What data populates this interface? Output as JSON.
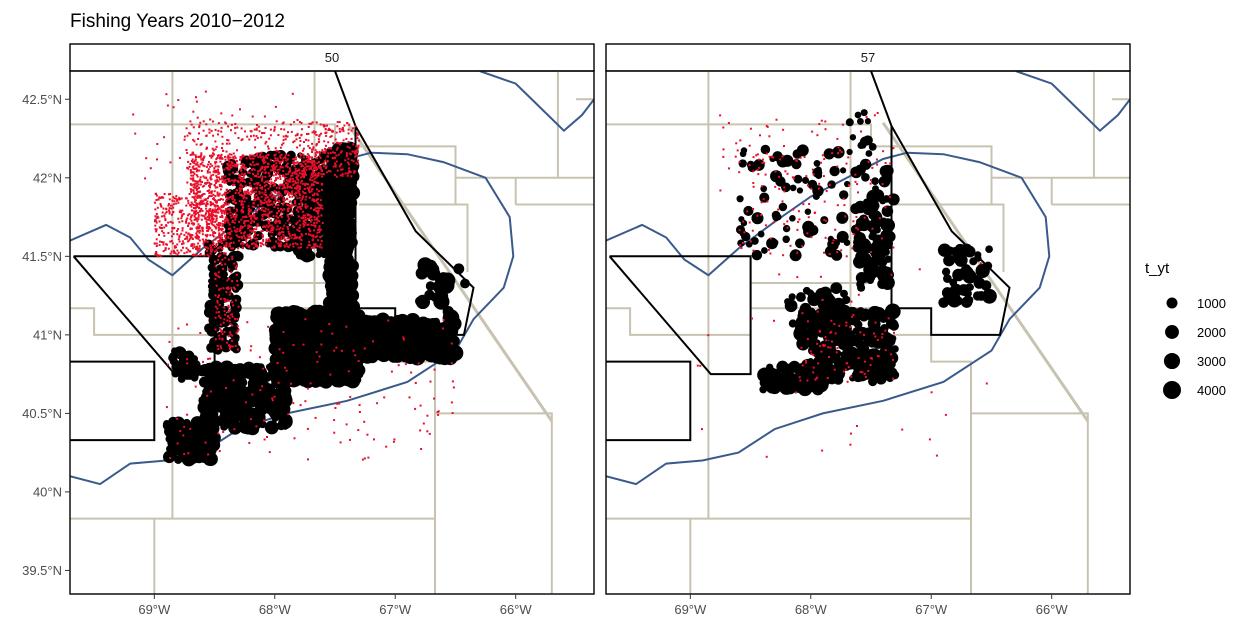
{
  "title": "Fishing Years 2010−2012",
  "panels": [
    {
      "label": "50"
    },
    {
      "label": "57"
    }
  ],
  "axes": {
    "xlim": [
      -69.7,
      -65.35
    ],
    "ylim": [
      39.35,
      42.68
    ],
    "x_ticks": [
      {
        "value": -69,
        "label": "69°W"
      },
      {
        "value": -68,
        "label": "68°W"
      },
      {
        "value": -67,
        "label": "67°W"
      },
      {
        "value": -66,
        "label": "66°W"
      }
    ],
    "y_ticks": [
      {
        "value": 39.5,
        "label": "39.5°N"
      },
      {
        "value": 40.0,
        "label": "40°N"
      },
      {
        "value": 40.5,
        "label": "40.5°N"
      },
      {
        "value": 41.0,
        "label": "41°N"
      },
      {
        "value": 41.5,
        "label": "41.5°N"
      },
      {
        "value": 42.0,
        "label": "42°N"
      },
      {
        "value": 42.5,
        "label": "42.5°N"
      }
    ]
  },
  "legend": {
    "title": "t_yt",
    "entries": [
      {
        "value": 1000,
        "label": "1000"
      },
      {
        "value": 2000,
        "label": "2000"
      },
      {
        "value": 3000,
        "label": "3000"
      },
      {
        "value": 4000,
        "label": "4000"
      }
    ]
  },
  "colors": {
    "stat_area_lines": "#c8c3b0",
    "closed_area": "#000000",
    "contour": "#3a5a8c",
    "haul_points": "#000000",
    "small_points": "#e8102a"
  },
  "chart_data": {
    "type": "scatter",
    "facets": [
      "50",
      "57"
    ],
    "size_variable": "t_yt",
    "stat_area_lines": [
      [
        [
          -69.7,
          42.34
        ],
        [
          -67.5,
          42.34
        ],
        [
          -67.5,
          42.2
        ],
        [
          -66.5,
          42.2
        ],
        [
          -66.5,
          42.0
        ],
        [
          -65.35,
          42.0
        ]
      ],
      [
        [
          -69.7,
          41.17
        ],
        [
          -69.5,
          41.17
        ],
        [
          -69.5,
          41.0
        ],
        [
          -68.5,
          41.0
        ]
      ],
      [
        [
          -68.5,
          41.17
        ],
        [
          -67.5,
          41.17
        ],
        [
          -67.5,
          41.0
        ],
        [
          -67.0,
          41.0
        ],
        [
          -67.0,
          40.83
        ],
        [
          -66.67,
          40.83
        ],
        [
          -66.67,
          40.5
        ],
        [
          -65.7,
          40.5
        ],
        [
          -65.7,
          39.35
        ]
      ],
      [
        [
          -68.85,
          42.68
        ],
        [
          -68.85,
          39.83
        ]
      ],
      [
        [
          -68.5,
          41.5
        ],
        [
          -68.5,
          41.17
        ]
      ],
      [
        [
          -68.5,
          41.33
        ],
        [
          -67.5,
          41.33
        ]
      ],
      [
        [
          -67.67,
          42.68
        ],
        [
          -67.67,
          41.17
        ]
      ],
      [
        [
          -69.7,
          39.83
        ],
        [
          -66.67,
          39.83
        ],
        [
          -66.67,
          39.35
        ]
      ],
      [
        [
          -69.0,
          39.83
        ],
        [
          -69.0,
          39.35
        ]
      ],
      [
        [
          -66.67,
          40.5
        ],
        [
          -66.67,
          39.83
        ]
      ],
      [
        [
          -67.3,
          41.83
        ],
        [
          -66.4,
          41.83
        ],
        [
          -66.4,
          41.4
        ]
      ],
      [
        [
          -66.5,
          42.0
        ],
        [
          -66.5,
          41.83
        ]
      ],
      [
        [
          -66.0,
          41.83
        ],
        [
          -66.0,
          42.0
        ]
      ],
      [
        [
          -65.35,
          41.83
        ],
        [
          -66.0,
          41.83
        ]
      ],
      [
        [
          -65.65,
          42.68
        ],
        [
          -65.65,
          42.0
        ]
      ],
      [
        [
          -65.5,
          42.5
        ],
        [
          -65.35,
          42.5
        ]
      ],
      [
        [
          -69.7,
          42.68
        ],
        [
          -67.85,
          42.68
        ]
      ]
    ],
    "closed_areas": [
      [
        [
          -69.67,
          41.5
        ],
        [
          -68.5,
          41.5
        ],
        [
          -68.5,
          40.75
        ],
        [
          -68.83,
          40.75
        ],
        [
          -69.67,
          41.5
        ]
      ],
      [
        [
          -67.5,
          42.68
        ],
        [
          -67.33,
          42.33
        ],
        [
          -67.33,
          41.17
        ],
        [
          -67.0,
          41.17
        ],
        [
          -67.0,
          41.0
        ],
        [
          -66.43,
          41.0
        ],
        [
          -66.35,
          41.3
        ],
        [
          -66.83,
          41.66
        ],
        [
          -67.33,
          42.33
        ]
      ],
      [
        [
          -69.7,
          40.83
        ],
        [
          -69.0,
          40.83
        ],
        [
          -69.0,
          40.33
        ],
        [
          -69.7,
          40.33
        ]
      ]
    ],
    "diagonal_line": [
      [
        -67.4,
        42.35
      ],
      [
        -65.7,
        40.45
      ]
    ],
    "contours": [
      [
        [
          -69.7,
          41.6
        ],
        [
          -69.4,
          41.7
        ],
        [
          -69.2,
          41.62
        ],
        [
          -69.05,
          41.48
        ],
        [
          -68.85,
          41.38
        ],
        [
          -68.6,
          41.55
        ],
        [
          -68.3,
          41.72
        ],
        [
          -68.0,
          41.88
        ],
        [
          -67.7,
          42.0
        ],
        [
          -67.4,
          42.12
        ],
        [
          -67.2,
          42.16
        ],
        [
          -66.9,
          42.15
        ],
        [
          -66.6,
          42.1
        ],
        [
          -66.25,
          42.0
        ],
        [
          -66.05,
          41.75
        ],
        [
          -66.02,
          41.5
        ],
        [
          -66.1,
          41.3
        ],
        [
          -66.35,
          41.1
        ],
        [
          -66.5,
          40.9
        ],
        [
          -66.9,
          40.7
        ],
        [
          -67.4,
          40.58
        ],
        [
          -67.9,
          40.5
        ],
        [
          -68.3,
          40.4
        ],
        [
          -68.6,
          40.25
        ],
        [
          -68.9,
          40.2
        ],
        [
          -69.2,
          40.18
        ],
        [
          -69.45,
          40.05
        ],
        [
          -69.7,
          40.1
        ]
      ],
      [
        [
          -66.3,
          42.68
        ],
        [
          -66.0,
          42.6
        ],
        [
          -65.8,
          42.45
        ],
        [
          -65.6,
          42.3
        ],
        [
          -65.45,
          42.4
        ],
        [
          -65.35,
          42.5
        ]
      ]
    ],
    "clusters": [
      {
        "facet": "50",
        "kind": "haul",
        "lon": [
          -68.0,
          -67.3
        ],
        "lat": [
          40.7,
          41.15
        ],
        "n": 1400,
        "t_yt": [
          50,
          2500
        ]
      },
      {
        "facet": "50",
        "kind": "haul",
        "lon": [
          -67.3,
          -66.5
        ],
        "lat": [
          40.85,
          41.1
        ],
        "n": 300,
        "t_yt": [
          100,
          3000
        ]
      },
      {
        "facet": "50",
        "kind": "haul",
        "lon": [
          -68.6,
          -67.9
        ],
        "lat": [
          40.4,
          40.8
        ],
        "n": 300,
        "t_yt": [
          100,
          2500
        ]
      },
      {
        "facet": "50",
        "kind": "haul",
        "lon": [
          -68.9,
          -68.5
        ],
        "lat": [
          40.2,
          40.45
        ],
        "n": 150,
        "t_yt": [
          200,
          2200
        ]
      },
      {
        "facet": "50",
        "kind": "haul",
        "lon": [
          -67.55,
          -67.35
        ],
        "lat": [
          41.15,
          42.2
        ],
        "n": 500,
        "t_yt": [
          100,
          2500
        ]
      },
      {
        "facet": "50",
        "kind": "haul",
        "lon": [
          -67.8,
          -67.4
        ],
        "lat": [
          41.5,
          42.0
        ],
        "n": 150,
        "t_yt": [
          100,
          2500
        ]
      },
      {
        "facet": "50",
        "kind": "haul",
        "lon": [
          -68.4,
          -67.4
        ],
        "lat": [
          41.55,
          42.15
        ],
        "n": 300,
        "t_yt": [
          50,
          1500
        ]
      },
      {
        "facet": "50",
        "kind": "haul",
        "lon": [
          -68.55,
          -68.3
        ],
        "lat": [
          40.9,
          41.6
        ],
        "n": 150,
        "t_yt": [
          50,
          1200
        ]
      },
      {
        "facet": "50",
        "kind": "haul",
        "lon": [
          -66.8,
          -66.4
        ],
        "lat": [
          41.0,
          41.45
        ],
        "n": 25,
        "t_yt": [
          500,
          3500
        ]
      },
      {
        "facet": "50",
        "kind": "haul",
        "lon": [
          -68.85,
          -68.65
        ],
        "lat": [
          40.7,
          40.9
        ],
        "n": 40,
        "t_yt": [
          200,
          1500
        ]
      },
      {
        "facet": "50",
        "kind": "small",
        "lon": [
          -68.7,
          -67.6
        ],
        "lat": [
          41.55,
          42.15
        ],
        "n": 1400
      },
      {
        "facet": "50",
        "kind": "small",
        "lon": [
          -69.0,
          -68.4
        ],
        "lat": [
          41.5,
          41.9
        ],
        "n": 400
      },
      {
        "facet": "50",
        "kind": "small",
        "lon": [
          -68.75,
          -67.8
        ],
        "lat": [
          41.9,
          42.36
        ],
        "n": 300
      },
      {
        "facet": "50",
        "kind": "small",
        "lon": [
          -67.8,
          -67.3
        ],
        "lat": [
          42.0,
          42.36
        ],
        "n": 250
      },
      {
        "facet": "50",
        "kind": "small",
        "lon": [
          -68.5,
          -68.3
        ],
        "lat": [
          40.9,
          41.5
        ],
        "n": 120
      },
      {
        "facet": "50",
        "kind": "small",
        "lon": [
          -68.9,
          -66.5
        ],
        "lat": [
          40.2,
          41.1
        ],
        "n": 150
      },
      {
        "facet": "50",
        "kind": "small",
        "lon": [
          -69.2,
          -67.7
        ],
        "lat": [
          41.8,
          42.6
        ],
        "n": 50
      },
      {
        "facet": "57",
        "kind": "haul",
        "lon": [
          -68.1,
          -67.3
        ],
        "lat": [
          40.7,
          41.15
        ],
        "n": 220,
        "t_yt": [
          100,
          3000
        ]
      },
      {
        "facet": "57",
        "kind": "haul",
        "lon": [
          -68.4,
          -67.9
        ],
        "lat": [
          40.65,
          40.8
        ],
        "n": 50,
        "t_yt": [
          200,
          2500
        ]
      },
      {
        "facet": "57",
        "kind": "haul",
        "lon": [
          -67.6,
          -67.35
        ],
        "lat": [
          41.3,
          41.9
        ],
        "n": 70,
        "t_yt": [
          200,
          2500
        ]
      },
      {
        "facet": "57",
        "kind": "haul",
        "lon": [
          -68.6,
          -67.3
        ],
        "lat": [
          41.5,
          42.2
        ],
        "n": 110,
        "t_yt": [
          100,
          1500
        ]
      },
      {
        "facet": "57",
        "kind": "haul",
        "lon": [
          -66.9,
          -66.5
        ],
        "lat": [
          41.2,
          41.55
        ],
        "n": 50,
        "t_yt": [
          200,
          2500
        ]
      },
      {
        "facet": "57",
        "kind": "haul",
        "lon": [
          -68.2,
          -67.7
        ],
        "lat": [
          41.0,
          41.3
        ],
        "n": 40,
        "t_yt": [
          200,
          2000
        ]
      },
      {
        "facet": "57",
        "kind": "haul",
        "lon": [
          -67.7,
          -67.5
        ],
        "lat": [
          42.2,
          42.42
        ],
        "n": 12,
        "t_yt": [
          100,
          800
        ]
      },
      {
        "facet": "57",
        "kind": "small",
        "lon": [
          -68.6,
          -67.3
        ],
        "lat": [
          41.5,
          42.2
        ],
        "n": 120
      },
      {
        "facet": "57",
        "kind": "small",
        "lon": [
          -68.1,
          -67.3
        ],
        "lat": [
          40.7,
          41.15
        ],
        "n": 80
      },
      {
        "facet": "57",
        "kind": "small",
        "lon": [
          -68.8,
          -67.4
        ],
        "lat": [
          41.9,
          42.42
        ],
        "n": 60
      },
      {
        "facet": "57",
        "kind": "small",
        "lon": [
          -69.0,
          -66.5
        ],
        "lat": [
          40.2,
          41.5
        ],
        "n": 30
      }
    ]
  }
}
